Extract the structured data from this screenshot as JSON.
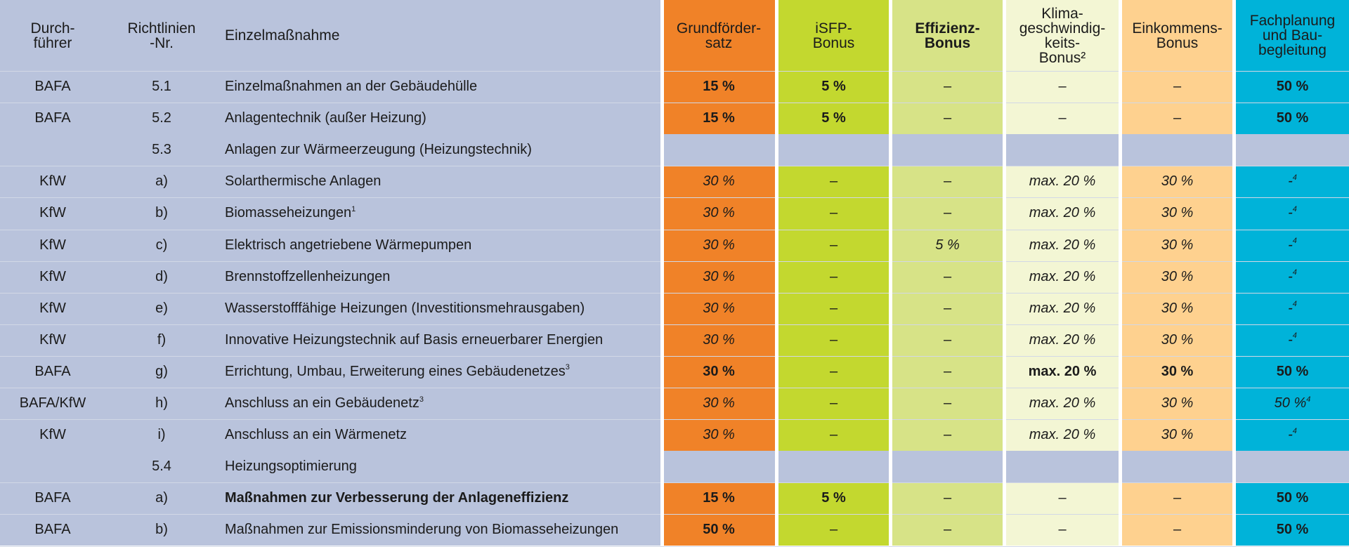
{
  "colors": {
    "row_bg": "#b9c3dc",
    "grundfoerder": "#f08228",
    "isfp": "#c3d82f",
    "effizienz": "#d7e387",
    "klima": "#f3f6d4",
    "einkommen": "#fed18f",
    "fachplanung": "#00b3d9"
  },
  "header": {
    "durchfuehrer": "Durch-\nführer",
    "richtlinien": "Richtlinien\n-Nr.",
    "massnahme": "Einzelmaßnahme",
    "grundfoerder": "Grundförder-\nsatz",
    "isfp": "iSFP-\nBonus",
    "effizienz": "Effizienz-\nBonus",
    "klima": "Klima-\ngeschwindig-\nkeits-\nBonus²",
    "einkommen": "Einkommens-\nBonus",
    "fachplanung": "Fachplanung\nund Bau-\nbegleitung"
  },
  "rows": [
    {
      "durch": "BAFA",
      "nr": "5.1",
      "mass": "Einzelmaßnahmen an der Gebäudehülle",
      "sup": "",
      "g": "15 %",
      "i": "5 %",
      "e": "–",
      "k": "–",
      "ek": "–",
      "f": "50 %",
      "style": "bold"
    },
    {
      "durch": "BAFA",
      "nr": "5.2",
      "mass": "Anlagentechnik (außer Heizung)",
      "sup": "",
      "g": "15 %",
      "i": "5 %",
      "e": "–",
      "k": "–",
      "ek": "–",
      "f": "50 %",
      "style": "bold"
    },
    {
      "durch": "",
      "nr": "5.3",
      "mass": "Anlagen zur Wärmeerzeugung (Heizungstechnik)",
      "sup": "",
      "section": true
    },
    {
      "durch": "KfW",
      "nr": "a)",
      "mass": "Solarthermische Anlagen",
      "sup": "",
      "g": "30 %",
      "i": "–",
      "e": "–",
      "k": "max. 20 %",
      "ek": "30 %",
      "f": "-",
      "fsup": "4",
      "style": "italic"
    },
    {
      "durch": "KfW",
      "nr": "b)",
      "mass": "Biomasseheizungen",
      "sup": "1",
      "g": "30 %",
      "i": "–",
      "e": "–",
      "k": "max. 20 %",
      "ek": "30 %",
      "f": "-",
      "fsup": "4",
      "style": "italic"
    },
    {
      "durch": "KfW",
      "nr": "c)",
      "mass": "Elektrisch angetriebene Wärmepumpen",
      "sup": "",
      "g": "30 %",
      "i": "–",
      "e": "5 %",
      "k": "max. 20 %",
      "ek": "30 %",
      "f": "-",
      "fsup": "4",
      "style": "italic"
    },
    {
      "durch": "KfW",
      "nr": "d)",
      "mass": "Brennstoffzellenheizungen",
      "sup": "",
      "g": "30 %",
      "i": "–",
      "e": "–",
      "k": "max. 20 %",
      "ek": "30 %",
      "f": "-",
      "fsup": "4",
      "style": "italic"
    },
    {
      "durch": "KfW",
      "nr": "e)",
      "mass": "Wasserstofffähige Heizungen (Investitionsmehrausgaben)",
      "sup": "",
      "g": "30 %",
      "i": "–",
      "e": "–",
      "k": "max. 20 %",
      "ek": "30 %",
      "f": "-",
      "fsup": "4",
      "style": "italic"
    },
    {
      "durch": "KfW",
      "nr": "f)",
      "mass": "Innovative Heizungstechnik auf Basis erneuerbarer Energien",
      "sup": "",
      "g": "30 %",
      "i": "–",
      "e": "–",
      "k": "max. 20 %",
      "ek": "30 %",
      "f": "-",
      "fsup": "4",
      "style": "italic"
    },
    {
      "durch": "BAFA",
      "nr": "g)",
      "mass": "Errichtung, Umbau, Erweiterung eines Gebäudenetzes",
      "sup": "3",
      "g": "30 %",
      "i": "–",
      "e": "–",
      "k": "max. 20 %",
      "ek": "30 %",
      "f": "50 %",
      "style": "bold"
    },
    {
      "durch": "BAFA/KfW",
      "nr": "h)",
      "mass": "Anschluss an ein Gebäudenetz",
      "sup": "3",
      "g": "30 %",
      "i": "–",
      "e": "–",
      "k": "max. 20 %",
      "ek": "30 %",
      "f": "50 %",
      "fsup": "4",
      "style": "italic"
    },
    {
      "durch": "KfW",
      "nr": "i)",
      "mass": "Anschluss an ein Wärmenetz",
      "sup": "",
      "g": "30 %",
      "i": "–",
      "e": "–",
      "k": "max. 20 %",
      "ek": "30 %",
      "f": "-",
      "fsup": "4",
      "style": "italic"
    },
    {
      "durch": "",
      "nr": "5.4",
      "mass": "Heizungsoptimierung",
      "sup": "",
      "section": true
    },
    {
      "durch": "BAFA",
      "nr": "a)",
      "mass": "Maßnahmen zur Verbesserung der Anlageneffizienz",
      "sup": "",
      "massbold": true,
      "g": "15 %",
      "i": "5 %",
      "e": "–",
      "k": "–",
      "ek": "–",
      "f": "50 %",
      "style": "bold"
    },
    {
      "durch": "BAFA",
      "nr": "b)",
      "mass": "Maßnahmen zur Emissionsminderung von Biomasseheizungen",
      "sup": "",
      "g": "50 %",
      "i": "–",
      "e": "–",
      "k": "–",
      "ek": "–",
      "f": "50 %",
      "style": "bold"
    }
  ]
}
